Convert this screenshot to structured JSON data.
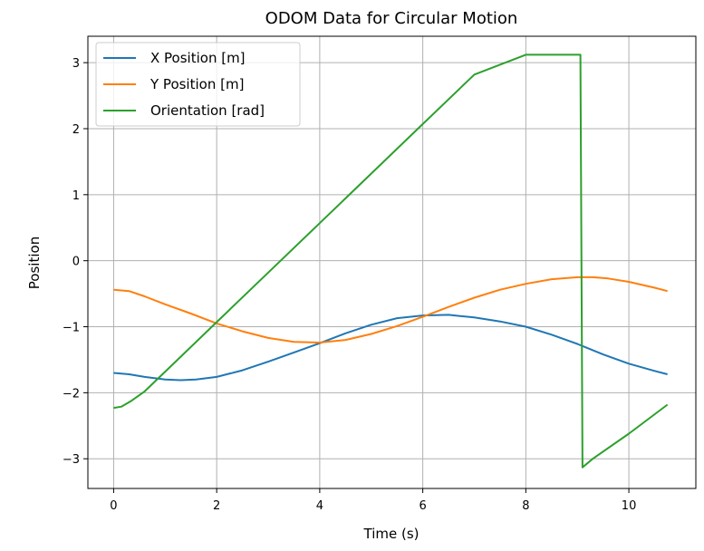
{
  "chart_data": {
    "type": "line",
    "title": "ODOM Data for Circular Motion",
    "xlabel": "Time (s)",
    "ylabel": "Position",
    "xlim": [
      -0.5,
      11.3
    ],
    "ylim": [
      -3.45,
      3.4
    ],
    "xticks": [
      0,
      2,
      4,
      6,
      8,
      10
    ],
    "yticks": [
      -3,
      -2,
      -1,
      0,
      1,
      2,
      3
    ],
    "grid": true,
    "legend_position": "upper-left",
    "series": [
      {
        "name": "X Position [m]",
        "color": "#1f77b4",
        "x": [
          0,
          0.3,
          0.6,
          1.0,
          1.3,
          1.6,
          2.0,
          2.5,
          3.0,
          3.5,
          4.0,
          4.5,
          5.0,
          5.5,
          6.0,
          6.5,
          7.0,
          7.5,
          8.0,
          8.5,
          9.0,
          9.5,
          10.0,
          10.5,
          10.75
        ],
        "y": [
          -1.7,
          -1.72,
          -1.76,
          -1.8,
          -1.81,
          -1.8,
          -1.76,
          -1.66,
          -1.53,
          -1.39,
          -1.25,
          -1.1,
          -0.97,
          -0.87,
          -0.83,
          -0.82,
          -0.86,
          -0.92,
          -1.0,
          -1.12,
          -1.26,
          -1.42,
          -1.56,
          -1.67,
          -1.72
        ]
      },
      {
        "name": "Y Position [m]",
        "color": "#ff7f0e",
        "x": [
          0,
          0.3,
          0.6,
          1.0,
          1.5,
          2.0,
          2.5,
          3.0,
          3.5,
          4.0,
          4.5,
          5.0,
          5.5,
          6.0,
          6.5,
          7.0,
          7.5,
          8.0,
          8.5,
          9.0,
          9.3,
          9.6,
          10.0,
          10.5,
          10.75
        ],
        "y": [
          -0.44,
          -0.46,
          -0.54,
          -0.66,
          -0.8,
          -0.95,
          -1.07,
          -1.17,
          -1.23,
          -1.24,
          -1.2,
          -1.11,
          -0.99,
          -0.85,
          -0.7,
          -0.56,
          -0.44,
          -0.35,
          -0.28,
          -0.25,
          -0.25,
          -0.27,
          -0.32,
          -0.41,
          -0.46
        ]
      },
      {
        "name": "Orientation [rad]",
        "color": "#2ca02c",
        "x": [
          0,
          0.15,
          0.35,
          0.6,
          1.0,
          2.0,
          3.0,
          4.0,
          5.0,
          6.0,
          7.0,
          8.0,
          9.06,
          9.06,
          9.1,
          9.3,
          10.0,
          10.75
        ],
        "y": [
          -2.23,
          -2.21,
          -2.12,
          -1.98,
          -1.68,
          -0.93,
          -0.18,
          0.57,
          1.32,
          2.07,
          2.82,
          3.12,
          3.12,
          3.12,
          -3.13,
          -3.0,
          -2.62,
          -2.18
        ]
      }
    ]
  }
}
